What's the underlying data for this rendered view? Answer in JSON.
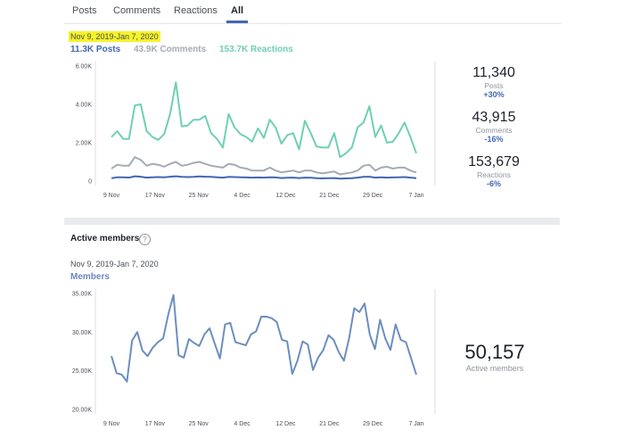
{
  "tabs": [
    "Posts",
    "Comments",
    "Reactions",
    "All"
  ],
  "activity": {
    "date_range": "Nov 9, 2019-Jan 7, 2020",
    "metric_tabs": [
      {
        "label": "11.3K Posts",
        "color": "#4267b2"
      },
      {
        "label": "43.9K Comments",
        "color": "#a4abb3"
      },
      {
        "label": "153.7K Reactions",
        "color": "#6fcfb5"
      }
    ],
    "stats": [
      {
        "value": "11,340",
        "label": "Posts",
        "change": "+30%"
      },
      {
        "value": "43,915",
        "label": "Comments",
        "change": "-16%"
      },
      {
        "value": "153,679",
        "label": "Reactions",
        "change": "-6%"
      }
    ]
  },
  "members_section": {
    "title": "Active members",
    "help_icon": "help-icon",
    "date_range": "Nov 9, 2019-Jan 7, 2020",
    "series_label": "Members",
    "stat_value": "50,157",
    "stat_label": "Active members"
  },
  "chart_data": [
    {
      "type": "line",
      "xlabel": "",
      "ylabel": "",
      "x_ticks": [
        "9 Nov",
        "17 Nov",
        "25 Nov",
        "4 Dec",
        "12 Dec",
        "21 Dec",
        "29 Dec",
        "7 Jan"
      ],
      "y_ticks": [
        "6.00K",
        "4.00K",
        "2.00K",
        "0"
      ],
      "ylim": [
        0,
        6000
      ],
      "grid": false,
      "series": [
        {
          "name": "Reactions",
          "color": "#6fcfb5",
          "values": [
            2300,
            2600,
            2200,
            2200,
            3950,
            4000,
            2600,
            2300,
            2150,
            2450,
            3500,
            5150,
            2850,
            2900,
            3200,
            3200,
            3400,
            2500,
            2200,
            1750,
            3500,
            2800,
            2450,
            2300,
            2050,
            2750,
            2250,
            3200,
            2800,
            1950,
            2400,
            2500,
            1650,
            3150,
            2500,
            1800,
            1750,
            1750,
            2500,
            1250,
            1450,
            1750,
            2800,
            3050,
            3900,
            2300,
            2900,
            2000,
            2050,
            2500,
            3050,
            2300,
            1450
          ]
        },
        {
          "name": "Comments",
          "color": "#a4abb3",
          "values": [
            650,
            850,
            800,
            800,
            1250,
            1100,
            800,
            900,
            850,
            750,
            900,
            1000,
            800,
            850,
            950,
            1000,
            900,
            800,
            750,
            700,
            900,
            850,
            700,
            650,
            550,
            550,
            550,
            700,
            550,
            450,
            500,
            550,
            450,
            550,
            550,
            450,
            400,
            450,
            500,
            350,
            400,
            450,
            550,
            800,
            850,
            550,
            700,
            750,
            650,
            700,
            700,
            550,
            450
          ]
        },
        {
          "name": "Posts",
          "color": "#4267b2",
          "values": [
            150,
            200,
            200,
            180,
            250,
            230,
            180,
            200,
            210,
            200,
            230,
            250,
            220,
            210,
            220,
            240,
            230,
            220,
            200,
            180,
            220,
            210,
            200,
            190,
            180,
            190,
            180,
            200,
            190,
            160,
            170,
            180,
            160,
            180,
            170,
            150,
            140,
            150,
            160,
            130,
            140,
            150,
            180,
            220,
            230,
            180,
            200,
            180,
            190,
            200,
            210,
            180,
            150
          ]
        }
      ]
    },
    {
      "type": "line",
      "xlabel": "",
      "ylabel": "",
      "x_ticks": [
        "9 Nov",
        "17 Nov",
        "25 Nov",
        "4 Dec",
        "12 Dec",
        "21 Dec",
        "29 Dec",
        "7 Jan"
      ],
      "y_ticks": [
        "35.00K",
        "30.00K",
        "25.00K",
        "20.00K"
      ],
      "ylim": [
        20000,
        35000
      ],
      "grid": false,
      "series": [
        {
          "name": "Members",
          "color": "#6c8ebf",
          "values": [
            26900,
            24700,
            24500,
            23600,
            28900,
            30000,
            27600,
            26900,
            28000,
            28700,
            29200,
            32300,
            34800,
            27000,
            26700,
            29100,
            28600,
            28200,
            29700,
            30500,
            28500,
            26600,
            31000,
            31200,
            28700,
            28500,
            28300,
            29700,
            30100,
            32000,
            32000,
            31800,
            31300,
            29000,
            28800,
            24600,
            26300,
            28800,
            28400,
            25100,
            26700,
            27700,
            29600,
            29000,
            27400,
            26300,
            29200,
            33100,
            32600,
            33700,
            29700,
            27800,
            31600,
            29200,
            27700,
            31000,
            29000,
            28700,
            26600,
            24500
          ]
        }
      ]
    }
  ]
}
